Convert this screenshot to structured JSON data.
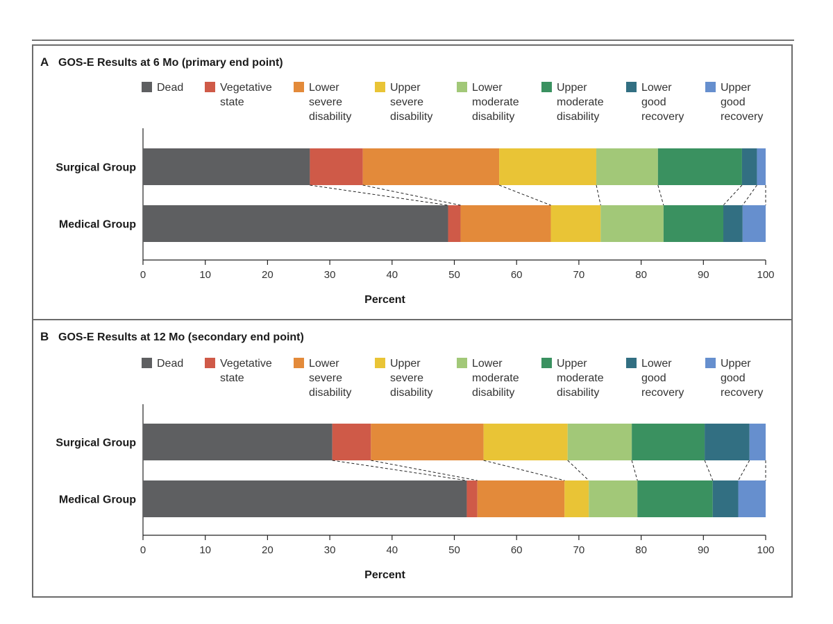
{
  "colors": {
    "dead": "#5e5f61",
    "vegetative": "#cf5a48",
    "lower_severe": "#e38a3a",
    "upper_severe": "#e9c436",
    "lower_moderate": "#a2c878",
    "upper_moderate": "#3a9160",
    "lower_good": "#326f82",
    "upper_good": "#668fce",
    "frame": "#6b6b6b",
    "text": "#1a1a1a"
  },
  "legend": [
    {
      "lines": [
        "Dead"
      ],
      "color_key": "dead"
    },
    {
      "lines": [
        "Vegetative",
        "state"
      ],
      "color_key": "vegetative"
    },
    {
      "lines": [
        "Lower",
        "severe",
        "disability"
      ],
      "color_key": "lower_severe"
    },
    {
      "lines": [
        "Upper",
        "severe",
        "disability"
      ],
      "color_key": "upper_severe"
    },
    {
      "lines": [
        "Lower",
        "moderate",
        "disability"
      ],
      "color_key": "lower_moderate"
    },
    {
      "lines": [
        "Upper",
        "moderate",
        "disability"
      ],
      "color_key": "upper_moderate"
    },
    {
      "lines": [
        "Lower",
        "good",
        "recovery"
      ],
      "color_key": "lower_good"
    },
    {
      "lines": [
        "Upper",
        "good",
        "recovery"
      ],
      "color_key": "upper_good"
    }
  ],
  "chart_data": [
    {
      "type": "bar",
      "stacked": true,
      "orientation": "horizontal",
      "panel_letter": "A",
      "title": "GOS-E Results at 6 Mo (primary end point)",
      "xlabel": "Percent",
      "ylabel": "",
      "xlim": [
        0,
        100
      ],
      "x_ticks": [
        0,
        10,
        20,
        30,
        40,
        50,
        60,
        70,
        80,
        90,
        100
      ],
      "categories": [
        "Surgical Group",
        "Medical Group"
      ],
      "series": [
        {
          "name": "Dead",
          "values": [
            26.8,
            49.0
          ]
        },
        {
          "name": "Vegetative state",
          "values": [
            8.5,
            2.0
          ]
        },
        {
          "name": "Lower severe disability",
          "values": [
            21.9,
            14.5
          ]
        },
        {
          "name": "Upper severe disability",
          "values": [
            15.6,
            8.0
          ]
        },
        {
          "name": "Lower moderate disability",
          "values": [
            9.9,
            10.1
          ]
        },
        {
          "name": "Upper moderate disability",
          "values": [
            13.5,
            9.6
          ]
        },
        {
          "name": "Lower good recovery",
          "values": [
            2.4,
            3.1
          ]
        },
        {
          "name": "Upper good recovery",
          "values": [
            1.4,
            3.7
          ]
        }
      ]
    },
    {
      "type": "bar",
      "stacked": true,
      "orientation": "horizontal",
      "panel_letter": "B",
      "title": "GOS-E Results at 12 Mo (secondary end point)",
      "xlabel": "Percent",
      "ylabel": "",
      "xlim": [
        0,
        100
      ],
      "x_ticks": [
        0,
        10,
        20,
        30,
        40,
        50,
        60,
        70,
        80,
        90,
        100
      ],
      "categories": [
        "Surgical Group",
        "Medical Group"
      ],
      "series": [
        {
          "name": "Dead",
          "values": [
            30.4,
            52.0
          ]
        },
        {
          "name": "Vegetative state",
          "values": [
            6.2,
            1.7
          ]
        },
        {
          "name": "Lower severe disability",
          "values": [
            18.1,
            14.0
          ]
        },
        {
          "name": "Upper severe disability",
          "values": [
            13.5,
            3.9
          ]
        },
        {
          "name": "Lower moderate disability",
          "values": [
            10.3,
            7.8
          ]
        },
        {
          "name": "Upper moderate disability",
          "values": [
            11.7,
            12.1
          ]
        },
        {
          "name": "Lower good recovery",
          "values": [
            7.2,
            4.1
          ]
        },
        {
          "name": "Upper good recovery",
          "values": [
            2.6,
            4.4
          ]
        }
      ]
    }
  ]
}
